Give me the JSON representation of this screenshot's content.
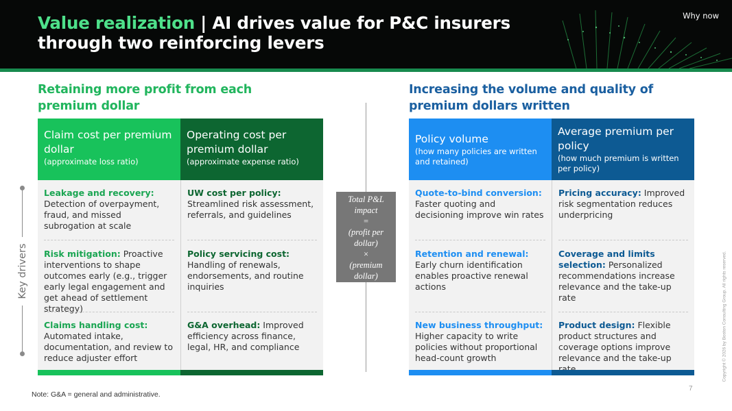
{
  "header": {
    "title_accent": "Value realization",
    "title_separator": " | ",
    "title_main": "AI drives value for P&C insurers through two reinforcing levers",
    "why_now": "Why now"
  },
  "left": {
    "heading": "Retaining more profit from each premium dollar",
    "columns": [
      {
        "title": "Claim cost per premium dollar",
        "subtitle": "(approximate loss ratio)",
        "drivers": [
          {
            "lead": "Leakage and recovery:",
            "text": " Detection of overpayment, fraud, and missed subrogation at scale"
          },
          {
            "lead": "Risk mitigation:",
            "text": " Proactive interventions to shape outcomes early (e.g., trigger early legal engagement and get ahead of settlement strategy)"
          },
          {
            "lead": "Claims handling cost:",
            "text": " Automated intake, documentation, and review to reduce adjuster effort"
          }
        ]
      },
      {
        "title": "Operating cost per premium dollar",
        "subtitle": "(approximate expense ratio)",
        "drivers": [
          {
            "lead": "UW cost per policy:",
            "text": " Streamlined risk assessment, referrals, and guidelines"
          },
          {
            "lead": "Policy servicing cost:",
            "text": " Handling of renewals, endorsements, and routine inquiries"
          },
          {
            "lead": "G&A overhead:",
            "text": " Improved efficiency across finance, legal, HR, and compliance"
          }
        ]
      }
    ]
  },
  "right": {
    "heading": "Increasing the volume and quality of premium dollars written",
    "columns": [
      {
        "title": "Policy volume",
        "subtitle": "(how many policies are written and retained)",
        "drivers": [
          {
            "lead": "Quote-to-bind conversion:",
            "text": " Faster quoting and decisioning improve win rates"
          },
          {
            "lead": "Retention and renewal:",
            "text": " Early churn identification enables proactive renewal actions"
          },
          {
            "lead": "New business throughput:",
            "text": " Higher capacity to write policies without proportional head-count growth"
          }
        ]
      },
      {
        "title": "Average premium per policy",
        "subtitle": "(how much premium is written per policy)",
        "drivers": [
          {
            "lead": "Pricing accuracy:",
            "text": " Improved risk segmentation reduces underpricing"
          },
          {
            "lead": "Coverage and limits selection:",
            "text": " Personalized recommendations increase relevance and the take-up rate"
          },
          {
            "lead": "Product design:",
            "text": " Flexible product structures and coverage options improve relevance and the take-up rate"
          }
        ]
      }
    ]
  },
  "formula": {
    "lines": [
      "Total P&L",
      "impact",
      "=",
      "(profit per",
      "dollar)",
      "×",
      "(premium",
      "dollar)"
    ]
  },
  "side_label": "Key drivers",
  "footer": {
    "note": "Note: G&A = general and administrative.",
    "page_number": "7",
    "copyright": "Copyright © 2026 by Boston Consulting Group. All rights reserved."
  },
  "colors": {
    "green_accent": "#18c25b",
    "dark_green": "#0d6631",
    "blue": "#1d8ef2",
    "navy": "#0d5a93",
    "formula_box": "#777777",
    "header_bg": "#060807"
  }
}
